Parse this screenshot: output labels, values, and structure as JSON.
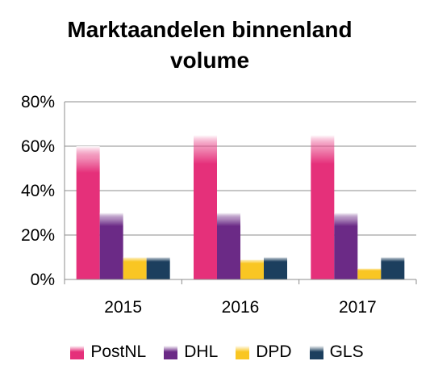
{
  "chart_data": {
    "type": "bar",
    "title": [
      "Marktaandelen binnenland",
      "volume"
    ],
    "categories": [
      "2015",
      "2016",
      "2017"
    ],
    "series": [
      {
        "name": "PostNL",
        "values": [
          60,
          65,
          65
        ],
        "color": "#e5307a"
      },
      {
        "name": "DHL",
        "values": [
          30,
          30,
          30
        ],
        "color": "#6b2a86"
      },
      {
        "name": "DPD",
        "values": [
          10,
          9,
          5
        ],
        "color": "#f9c623"
      },
      {
        "name": "GLS",
        "values": [
          10,
          10,
          10
        ],
        "color": "#1c3f5e"
      }
    ],
    "ylim": [
      0,
      80
    ],
    "yticks": [
      "0%",
      "20%",
      "40%",
      "60%",
      "80%"
    ],
    "ytick_values": [
      0,
      20,
      40,
      60,
      80
    ],
    "grid": true,
    "legend_position": "bottom"
  }
}
